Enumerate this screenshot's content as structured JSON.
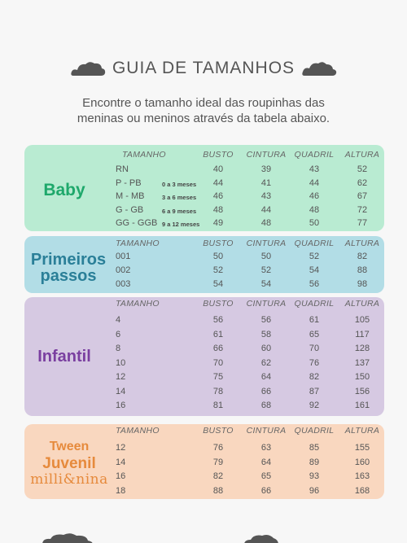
{
  "title": "GUIA DE TAMANHOS",
  "subtitle_line1": "Encontre o tamanho ideal das roupinhas das",
  "subtitle_line2": "meninas ou meninos através da tabela abaixo.",
  "headers": {
    "size": "TAMANHO",
    "bust": "BUSTO",
    "waist": "CINTURA",
    "hip": "QUADRIL",
    "height": "ALTURA"
  },
  "colors": {
    "baby": "#b9ebd2",
    "primeiros": "#b2dde6",
    "infantil": "#d6c9e2",
    "tween": "#f9d7bf",
    "baby_text": "#1ea86b",
    "primeiros_text": "#2a7f98",
    "infantil_text": "#7a3fa0",
    "tween_text": "#e68a3c"
  },
  "groups": {
    "baby": {
      "name": "Baby",
      "rows": [
        {
          "size": "RN",
          "age": "",
          "bust": "40",
          "waist": "39",
          "hip": "43",
          "height": "52"
        },
        {
          "size": "P - PB",
          "age": "0 a 3 meses",
          "bust": "44",
          "waist": "41",
          "hip": "44",
          "height": "62"
        },
        {
          "size": "M - MB",
          "age": "3 a 6 meses",
          "bust": "46",
          "waist": "43",
          "hip": "46",
          "height": "67"
        },
        {
          "size": "G - GB",
          "age": "6 a 9 meses",
          "bust": "48",
          "waist": "44",
          "hip": "48",
          "height": "72"
        },
        {
          "size": "GG - GGB",
          "age": "9 a 12 meses",
          "bust": "49",
          "waist": "48",
          "hip": "50",
          "height": "77"
        }
      ]
    },
    "primeiros": {
      "name_line1": "Primeiros",
      "name_line2": "passos",
      "rows": [
        {
          "size": "001",
          "bust": "50",
          "waist": "50",
          "hip": "52",
          "height": "82"
        },
        {
          "size": "002",
          "bust": "52",
          "waist": "52",
          "hip": "54",
          "height": "88"
        },
        {
          "size": "003",
          "bust": "54",
          "waist": "54",
          "hip": "56",
          "height": "98"
        }
      ]
    },
    "infantil": {
      "name": "Infantil",
      "rows": [
        {
          "size": "4",
          "bust": "56",
          "waist": "56",
          "hip": "61",
          "height": "105"
        },
        {
          "size": "6",
          "bust": "61",
          "waist": "58",
          "hip": "65",
          "height": "117"
        },
        {
          "size": "8",
          "bust": "66",
          "waist": "60",
          "hip": "70",
          "height": "128"
        },
        {
          "size": "10",
          "bust": "70",
          "waist": "62",
          "hip": "76",
          "height": "137"
        },
        {
          "size": "12",
          "bust": "75",
          "waist": "64",
          "hip": "82",
          "height": "150"
        },
        {
          "size": "14",
          "bust": "78",
          "waist": "66",
          "hip": "87",
          "height": "156"
        },
        {
          "size": "16",
          "bust": "81",
          "waist": "68",
          "hip": "92",
          "height": "161"
        }
      ]
    },
    "tween": {
      "name_line1": "Tween",
      "name_line2": "Juvenil",
      "name_line3": "milli&nina",
      "rows": [
        {
          "size": "12",
          "bust": "76",
          "waist": "63",
          "hip": "85",
          "height": "155"
        },
        {
          "size": "14",
          "bust": "79",
          "waist": "64",
          "hip": "89",
          "height": "160"
        },
        {
          "size": "16",
          "bust": "82",
          "waist": "65",
          "hip": "93",
          "height": "163"
        },
        {
          "size": "18",
          "bust": "88",
          "waist": "66",
          "hip": "96",
          "height": "168"
        }
      ]
    }
  }
}
